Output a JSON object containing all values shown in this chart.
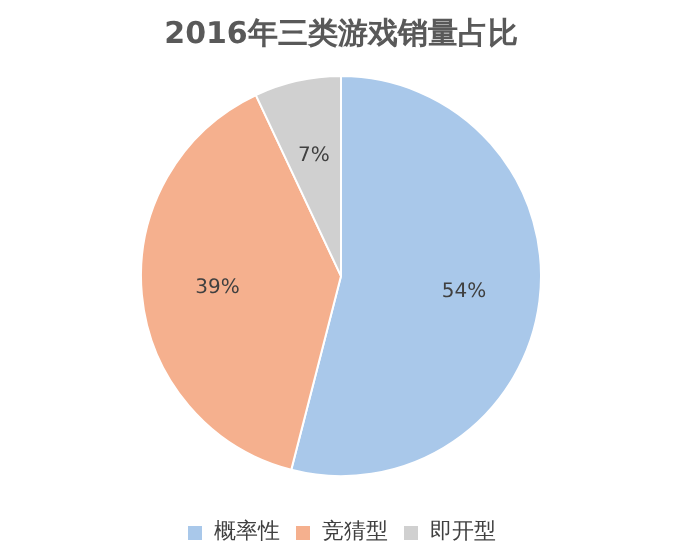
{
  "chart_data": {
    "type": "pie",
    "title": "2016年三类游戏销量占比",
    "categories": [
      "概率性",
      "竞猜型",
      "即开型"
    ],
    "values": [
      54,
      39,
      7
    ],
    "value_labels": [
      "54%",
      "39%",
      "7%"
    ],
    "colors": [
      "#a9c8ea",
      "#f5b08e",
      "#d0d0d0"
    ],
    "legend": "bottom"
  }
}
